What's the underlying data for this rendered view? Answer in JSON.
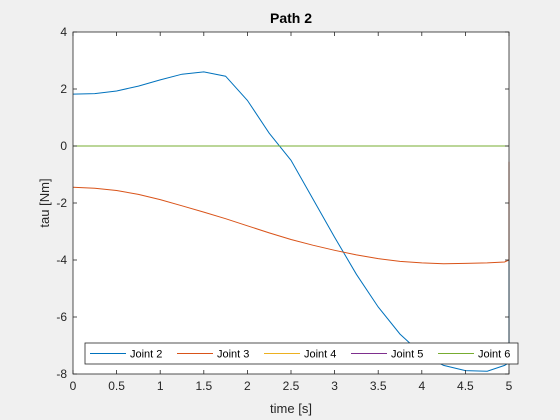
{
  "chart_data": {
    "type": "line",
    "title": "Path 2",
    "xlabel": "time [s]",
    "ylabel": "tau [Nm]",
    "xlim": [
      0,
      5
    ],
    "ylim": [
      -8,
      4
    ],
    "xticks": [
      0,
      0.5,
      1,
      1.5,
      2,
      2.5,
      3,
      3.5,
      4,
      4.5,
      5
    ],
    "xtick_labels": [
      "0",
      "0.5",
      "1",
      "1.5",
      "2",
      "2.5",
      "3",
      "3.5",
      "4",
      "4.5",
      "5"
    ],
    "yticks": [
      -8,
      -6,
      -4,
      -2,
      0,
      2,
      4
    ],
    "ytick_labels": [
      "-8",
      "-6",
      "-4",
      "-2",
      "0",
      "2",
      "4"
    ],
    "grid": false,
    "legend_position": "bottom",
    "legend_orientation": "horizontal",
    "series": [
      {
        "name": "Joint 2",
        "color": "#0072bd",
        "x": [
          0,
          0.25,
          0.5,
          0.75,
          1.0,
          1.25,
          1.5,
          1.75,
          2.0,
          2.25,
          2.5,
          2.75,
          3.0,
          3.25,
          3.5,
          3.75,
          4.0,
          4.25,
          4.5,
          4.75,
          4.95,
          5.0,
          5.0
        ],
        "y": [
          1.82,
          1.84,
          1.93,
          2.1,
          2.32,
          2.52,
          2.6,
          2.45,
          1.6,
          0.45,
          -0.5,
          -1.85,
          -3.2,
          -4.5,
          -5.65,
          -6.6,
          -7.3,
          -7.7,
          -7.88,
          -7.9,
          -7.7,
          -7.6,
          -4.0
        ]
      },
      {
        "name": "Joint 3",
        "color": "#d95319",
        "x": [
          0,
          0.25,
          0.5,
          0.75,
          1.0,
          1.25,
          1.5,
          1.75,
          2.0,
          2.25,
          2.5,
          2.75,
          3.0,
          3.25,
          3.5,
          3.75,
          4.0,
          4.25,
          4.5,
          4.75,
          4.95,
          5.0,
          5.0
        ],
        "y": [
          -1.45,
          -1.48,
          -1.56,
          -1.7,
          -1.88,
          -2.1,
          -2.32,
          -2.55,
          -2.8,
          -3.05,
          -3.28,
          -3.48,
          -3.66,
          -3.82,
          -3.95,
          -4.05,
          -4.1,
          -4.13,
          -4.12,
          -4.1,
          -4.07,
          -4.0,
          -0.55
        ]
      },
      {
        "name": "Joint 4",
        "color": "#edb120",
        "x": [
          0,
          5
        ],
        "y": [
          0,
          0
        ]
      },
      {
        "name": "Joint 5",
        "color": "#7e2f8e",
        "x": [
          0,
          5
        ],
        "y": [
          0,
          0
        ]
      },
      {
        "name": "Joint 6",
        "color": "#77ac30",
        "x": [
          0,
          5
        ],
        "y": [
          0,
          0
        ]
      }
    ]
  }
}
